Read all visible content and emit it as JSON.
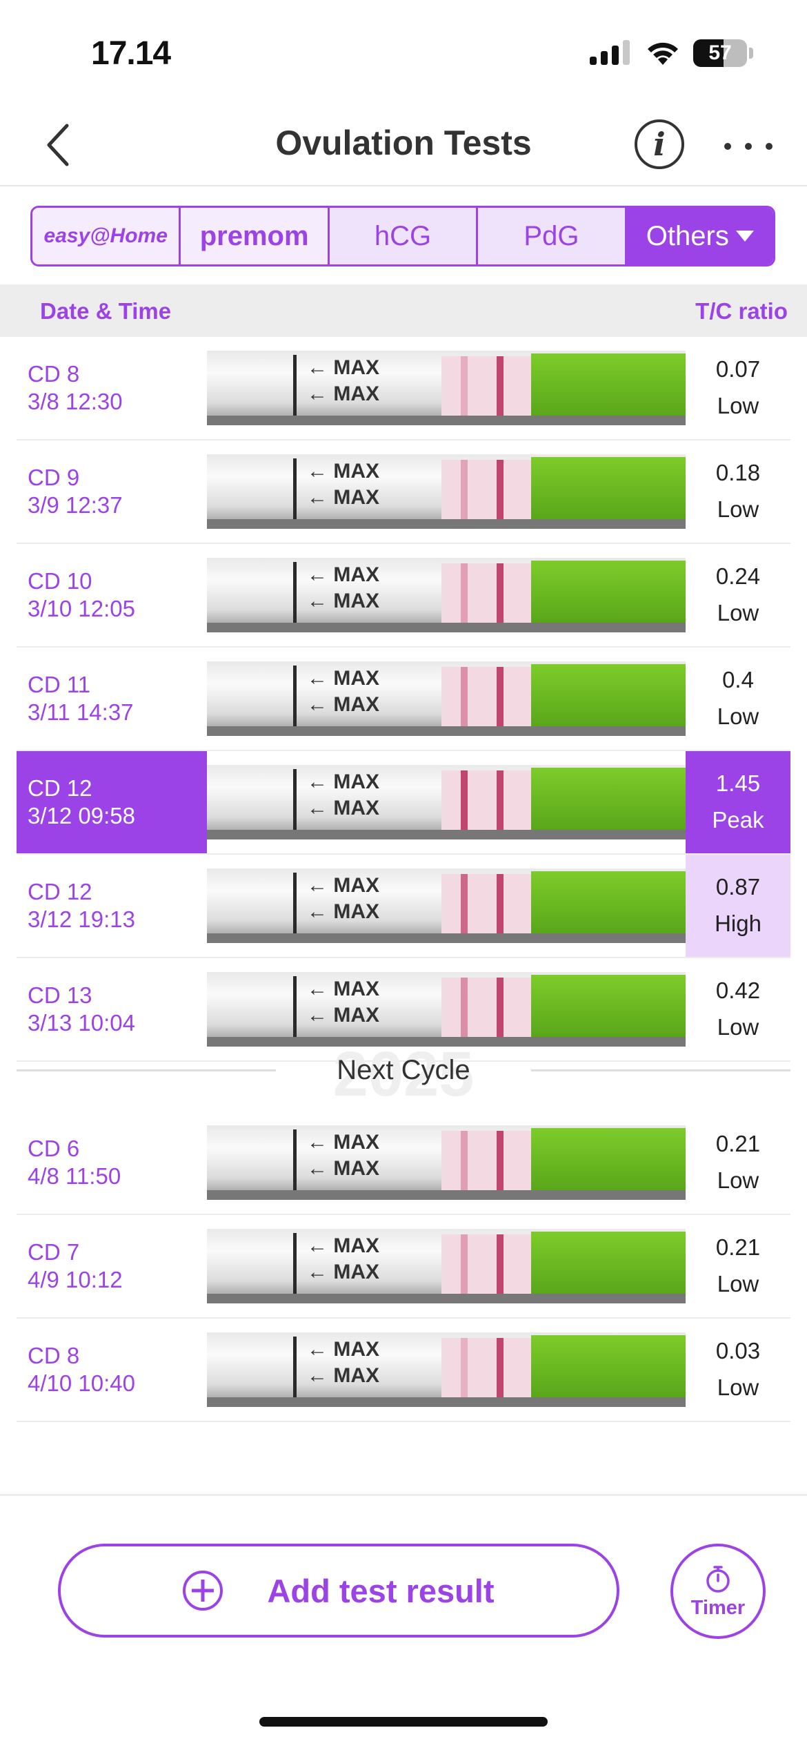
{
  "status": {
    "time": "17.14",
    "battery": "57",
    "battery_level": 0.57
  },
  "nav": {
    "title": "Ovulation Tests",
    "back_icon": "chevron-left-icon",
    "info_icon": "info-icon",
    "more_icon": "more-horizontal-icon"
  },
  "tabs": [
    {
      "label": "easy@Home",
      "kind": "brand"
    },
    {
      "label": "premom",
      "kind": "brand"
    },
    {
      "label": "hCG",
      "kind": "test"
    },
    {
      "label": "PdG",
      "kind": "test"
    },
    {
      "label": "Others",
      "kind": "dropdown",
      "active": true
    }
  ],
  "table": {
    "col_date": "Date & Time",
    "col_ratio": "T/C ratio"
  },
  "rows": [
    {
      "cd": "CD 8",
      "datetime": "3/8 12:30",
      "ratio": "0.07",
      "level": "Low"
    },
    {
      "cd": "CD 9",
      "datetime": "3/9 12:37",
      "ratio": "0.18",
      "level": "Low"
    },
    {
      "cd": "CD 10",
      "datetime": "3/10 12:05",
      "ratio": "0.24",
      "level": "Low"
    },
    {
      "cd": "CD 11",
      "datetime": "3/11 14:37",
      "ratio": "0.4",
      "level": "Low"
    },
    {
      "cd": "CD 12",
      "datetime": "3/12 09:58",
      "ratio": "1.45",
      "level": "Peak",
      "state": "selected"
    },
    {
      "cd": "CD 12",
      "datetime": "3/12 19:13",
      "ratio": "0.87",
      "level": "High",
      "state": "high"
    },
    {
      "cd": "CD 13",
      "datetime": "3/13 10:04",
      "ratio": "0.42",
      "level": "Low"
    }
  ],
  "divider": {
    "year": "2025",
    "label": "Next Cycle"
  },
  "rows_next": [
    {
      "cd": "CD 6",
      "datetime": "4/8 11:50",
      "ratio": "0.21",
      "level": "Low"
    },
    {
      "cd": "CD 7",
      "datetime": "4/9 10:12",
      "ratio": "0.21",
      "level": "Low"
    },
    {
      "cd": "CD 8",
      "datetime": "4/10 10:40",
      "ratio": "0.03",
      "level": "Low"
    }
  ],
  "strip_text": {
    "max": "← MAX"
  },
  "actions": {
    "add_label": "Add test result",
    "timer_label": "Timer"
  },
  "colors": {
    "accent": "#9b43e6",
    "accent_light": "#ebd5fb",
    "strip_line": "#c0456f",
    "strip_green": "#6bbb22"
  }
}
